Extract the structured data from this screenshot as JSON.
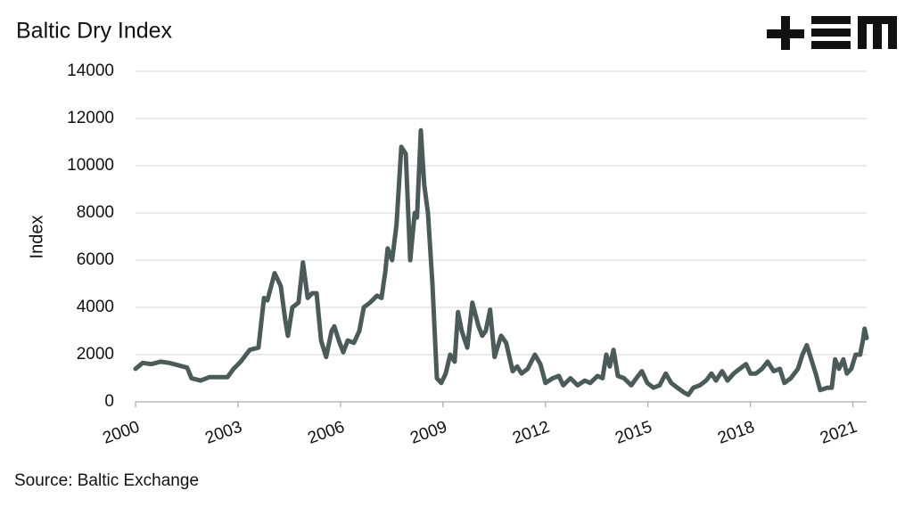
{
  "chart_data": {
    "type": "line",
    "title": "Baltic Dry Index",
    "y_label": "Index",
    "source": "Source: Baltic Exchange",
    "color": "#4b5b5a",
    "grid": true,
    "xlim": [
      2000,
      2021.4
    ],
    "xticks": [
      2000,
      2003,
      2006,
      2009,
      2012,
      2015,
      2018,
      2021
    ],
    "ylim": [
      0,
      14000
    ],
    "yticks": [
      0,
      2000,
      4000,
      6000,
      8000,
      10000,
      12000,
      14000
    ],
    "x": [
      2000.0,
      2000.21,
      2000.47,
      2000.73,
      2000.99,
      2001.25,
      2001.51,
      2001.64,
      2001.9,
      2002.17,
      2002.43,
      2002.69,
      2002.87,
      2003.08,
      2003.34,
      2003.6,
      2003.76,
      2003.86,
      2004.07,
      2004.25,
      2004.38,
      2004.46,
      2004.59,
      2004.77,
      2004.9,
      2005.04,
      2005.17,
      2005.3,
      2005.43,
      2005.58,
      2005.74,
      2005.82,
      2005.95,
      2006.08,
      2006.21,
      2006.39,
      2006.55,
      2006.68,
      2006.86,
      2007.07,
      2007.2,
      2007.31,
      2007.38,
      2007.51,
      2007.64,
      2007.78,
      2007.91,
      2008.04,
      2008.17,
      2008.24,
      2008.35,
      2008.45,
      2008.56,
      2008.69,
      2008.82,
      2008.95,
      2009.08,
      2009.21,
      2009.34,
      2009.44,
      2009.55,
      2009.71,
      2009.86,
      2010.04,
      2010.15,
      2010.25,
      2010.38,
      2010.51,
      2010.7,
      2010.85,
      2011.04,
      2011.17,
      2011.3,
      2011.48,
      2011.69,
      2011.85,
      2012.0,
      2012.21,
      2012.39,
      2012.52,
      2012.73,
      2012.94,
      2013.15,
      2013.31,
      2013.52,
      2013.67,
      2013.78,
      2013.88,
      2013.99,
      2014.12,
      2014.3,
      2014.51,
      2014.66,
      2014.82,
      2014.98,
      2015.16,
      2015.34,
      2015.52,
      2015.68,
      2015.86,
      2016.05,
      2016.18,
      2016.33,
      2016.52,
      2016.7,
      2016.86,
      2016.99,
      2017.17,
      2017.33,
      2017.51,
      2017.69,
      2017.87,
      2018.0,
      2018.16,
      2018.34,
      2018.5,
      2018.68,
      2018.86,
      2018.99,
      2019.18,
      2019.39,
      2019.52,
      2019.65,
      2019.78,
      2019.91,
      2020.04,
      2020.25,
      2020.38,
      2020.48,
      2020.59,
      2020.72,
      2020.82,
      2020.95,
      2021.08,
      2021.21,
      2021.29,
      2021.34,
      2021.4
    ],
    "values": [
      1400,
      1650,
      1600,
      1700,
      1650,
      1550,
      1450,
      1000,
      900,
      1050,
      1050,
      1050,
      1400,
      1700,
      2200,
      2300,
      4400,
      4300,
      5450,
      4900,
      3500,
      2800,
      4000,
      4200,
      5900,
      4400,
      4600,
      4600,
      2600,
      1900,
      3000,
      3200,
      2600,
      2100,
      2600,
      2500,
      3000,
      4000,
      4200,
      4500,
      4400,
      5500,
      6500,
      6000,
      7500,
      10800,
      10500,
      6000,
      8000,
      7800,
      11500,
      9200,
      8000,
      5000,
      1000,
      800,
      1200,
      2000,
      1700,
      3800,
      3000,
      2300,
      4200,
      3200,
      2800,
      3000,
      3900,
      1900,
      2800,
      2500,
      1300,
      1500,
      1200,
      1400,
      2000,
      1600,
      800,
      1000,
      1100,
      700,
      1000,
      700,
      900,
      800,
      1100,
      1000,
      2000,
      1500,
      2200,
      1100,
      1000,
      700,
      1000,
      1300,
      800,
      600,
      700,
      1200,
      800,
      600,
      400,
      300,
      600,
      700,
      900,
      1200,
      900,
      1300,
      900,
      1200,
      1400,
      1600,
      1200,
      1200,
      1400,
      1700,
      1300,
      1400,
      800,
      1000,
      1400,
      2000,
      2400,
      1800,
      1200,
      500,
      600,
      600,
      1800,
      1400,
      1800,
      1200,
      1400,
      2000,
      2000,
      2600,
      3100,
      2700
    ]
  }
}
